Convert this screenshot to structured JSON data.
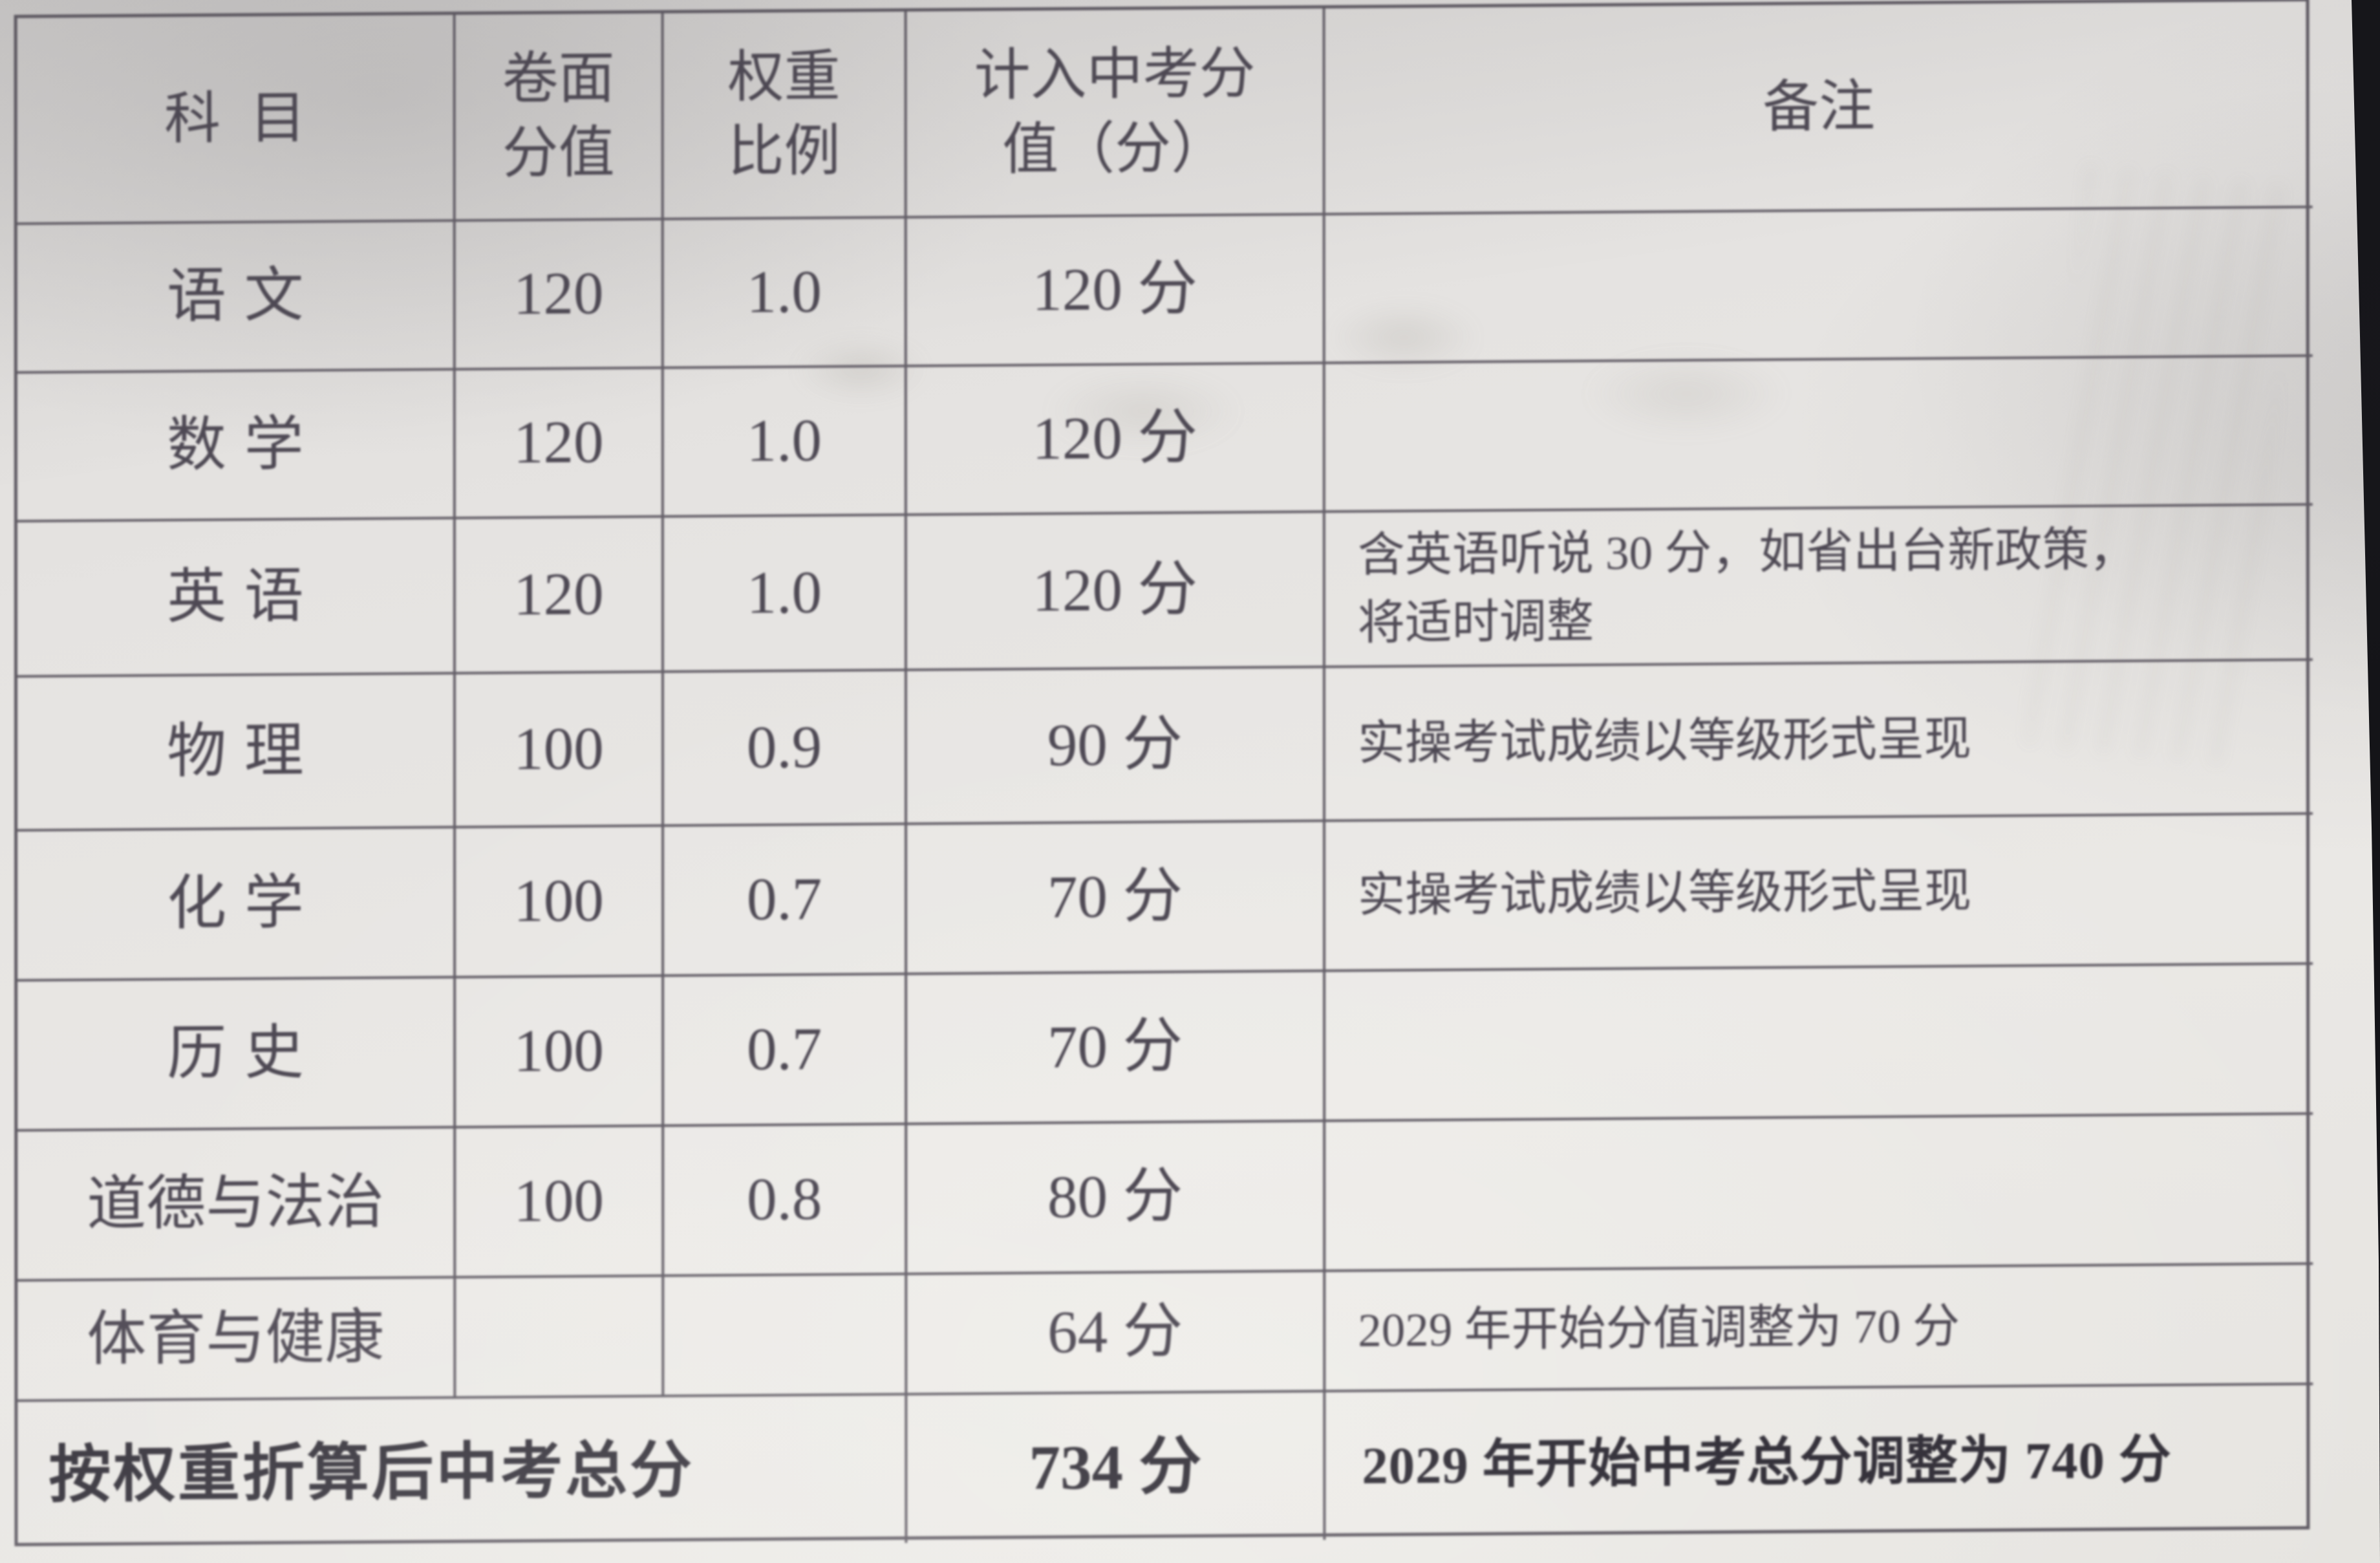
{
  "document": {
    "type": "photographed printed score table",
    "colors": {
      "paper": "#e7e5e2",
      "ink": "#4e4954",
      "ink_bold": "#35323b",
      "table_line": "#645f68",
      "backdrop": "#141418"
    },
    "table": {
      "headers": {
        "subject": "科目",
        "paper_score_lines": [
          "卷面",
          "分值"
        ],
        "weight_lines": [
          "权重",
          "比例"
        ],
        "counted_score_lines": [
          "计入中考分",
          "值（分）"
        ],
        "remark": "备注"
      },
      "rows": [
        {
          "subject": "语文",
          "paper_score": "120",
          "weight": "1.0",
          "counted_score": "120 分",
          "remark_lines": []
        },
        {
          "subject": "数学",
          "paper_score": "120",
          "weight": "1.0",
          "counted_score": "120 分",
          "remark_lines": []
        },
        {
          "subject": "英语",
          "paper_score": "120",
          "weight": "1.0",
          "counted_score": "120 分",
          "remark_lines": [
            "含英语听说 30 分，如省出台新政策，",
            "将适时调整"
          ]
        },
        {
          "subject": "物理",
          "paper_score": "100",
          "weight": "0.9",
          "counted_score": "90 分",
          "remark_lines": [
            "实操考试成绩以等级形式呈现"
          ]
        },
        {
          "subject": "化学",
          "paper_score": "100",
          "weight": "0.7",
          "counted_score": "70 分",
          "remark_lines": [
            "实操考试成绩以等级形式呈现"
          ]
        },
        {
          "subject": "历史",
          "paper_score": "100",
          "weight": "0.7",
          "counted_score": "70 分",
          "remark_lines": []
        },
        {
          "subject": "道德与法治",
          "paper_score": "100",
          "weight": "0.8",
          "counted_score": "80 分",
          "remark_lines": []
        },
        {
          "subject": "体育与健康",
          "paper_score": "",
          "weight": "",
          "counted_score": "64 分",
          "remark_lines": [
            "2029 年开始分值调整为 70 分"
          ]
        }
      ],
      "total_row": {
        "label": "按权重折算后中考总分",
        "counted_score": "734 分",
        "remark": "2029 年开始中考总分调整为 740 分"
      }
    }
  }
}
